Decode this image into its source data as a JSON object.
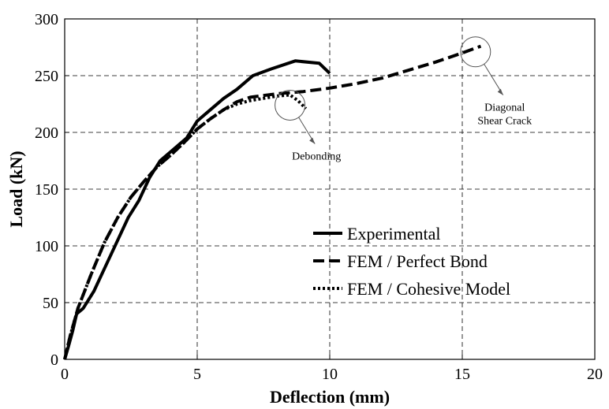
{
  "chart_data": {
    "type": "line",
    "xlabel": "Deflection (mm)",
    "ylabel": "Load (kN)",
    "xlim": [
      0,
      20
    ],
    "ylim": [
      0,
      300
    ],
    "xticks": [
      "0",
      "5",
      "10",
      "15",
      "20"
    ],
    "yticks": [
      "0",
      "50",
      "100",
      "150",
      "200",
      "250",
      "300"
    ],
    "grid": "dashed",
    "legend_position": "lower-right",
    "series": [
      {
        "name": "Experimental",
        "line_style": "solid",
        "x": [
          0,
          0.15,
          0.3,
          0.45,
          0.7,
          1.1,
          1.5,
          2,
          2.4,
          2.8,
          3.2,
          3.6,
          4.1,
          4.6,
          5,
          5.5,
          6,
          6.5,
          7.1,
          7.8,
          8.7,
          9.6,
          10
        ],
        "y": [
          0,
          12,
          25,
          40,
          45,
          60,
          80,
          105,
          125,
          140,
          160,
          175,
          185,
          195,
          210,
          220,
          230,
          238,
          250,
          256,
          263,
          261,
          252
        ]
      },
      {
        "name": "FEM / Perfect Bond",
        "line_style": "dashed",
        "x": [
          0,
          0.2,
          0.5,
          1,
          1.5,
          2,
          2.5,
          3,
          3.5,
          4,
          4.5,
          5,
          5.5,
          6,
          6.5,
          7,
          8,
          9,
          10,
          11,
          12,
          13,
          14,
          15,
          15.7
        ],
        "y": [
          0,
          20,
          45,
          75,
          103,
          125,
          143,
          157,
          170,
          180,
          191,
          203,
          212,
          220,
          227,
          231,
          234,
          236,
          239,
          243,
          248,
          255,
          262,
          270,
          276
        ]
      },
      {
        "name": "FEM / Cohesive Model",
        "line_style": "dotted",
        "x": [
          0,
          0.2,
          0.5,
          1,
          1.5,
          2,
          2.5,
          3,
          3.5,
          4,
          4.5,
          5,
          5.5,
          6,
          6.5,
          7,
          7.5,
          8,
          8.5,
          8.8,
          9.1
        ],
        "y": [
          0,
          20,
          45,
          75,
          103,
          125,
          143,
          157,
          170,
          180,
          191,
          203,
          212,
          220,
          225,
          228,
          230,
          232,
          233,
          228,
          221
        ]
      }
    ],
    "annotations": [
      {
        "text": "Debonding",
        "lines": [
          "Debonding"
        ],
        "circle_at": [
          8.5,
          224
        ],
        "label_at": [
          9.5,
          176
        ]
      },
      {
        "text": "Diagonal Shear Crack",
        "lines": [
          "Diagonal",
          "Shear Crack"
        ],
        "circle_at": [
          15.5,
          271
        ],
        "label_at": [
          16.6,
          219
        ]
      }
    ]
  }
}
